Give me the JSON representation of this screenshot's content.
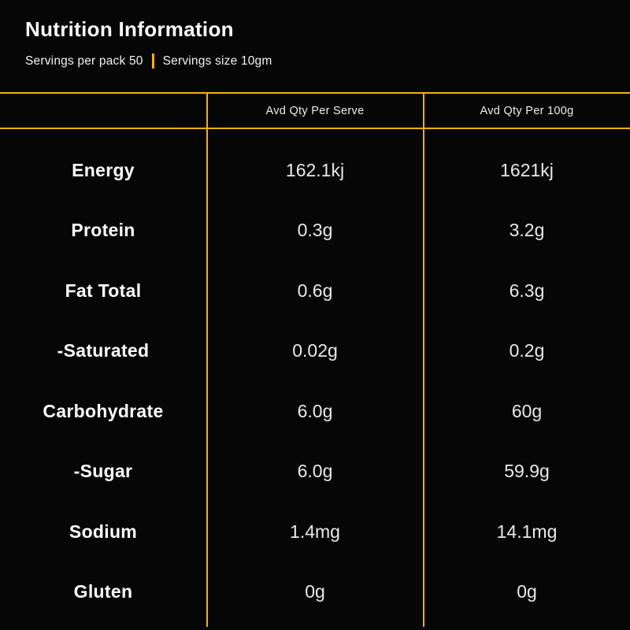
{
  "colors": {
    "accent": "#fbaf08",
    "background": "#060606",
    "label_text": "#ffffff",
    "value_text": "#e9e9e9"
  },
  "header": {
    "title": "Nutrition Information",
    "servings_per_pack": "Servings per pack 50",
    "serving_size": "Servings size 10gm"
  },
  "table": {
    "columns": [
      "",
      "Avd Qty Per Serve",
      "Avd Qty Per 100g"
    ],
    "rows": [
      {
        "label": "Energy",
        "per_serve": "162.1kj",
        "per_100g": "1621kj"
      },
      {
        "label": "Protein",
        "per_serve": "0.3g",
        "per_100g": "3.2g"
      },
      {
        "label": "Fat Total",
        "per_serve": "0.6g",
        "per_100g": "6.3g"
      },
      {
        "label": "-Saturated",
        "per_serve": "0.02g",
        "per_100g": "0.2g"
      },
      {
        "label": "Carbohydrate",
        "per_serve": "6.0g",
        "per_100g": "60g"
      },
      {
        "label": "-Sugar",
        "per_serve": "6.0g",
        "per_100g": "59.9g"
      },
      {
        "label": "Sodium",
        "per_serve": "1.4mg",
        "per_100g": "14.1mg"
      },
      {
        "label": "Gluten",
        "per_serve": "0g",
        "per_100g": "0g"
      }
    ]
  }
}
